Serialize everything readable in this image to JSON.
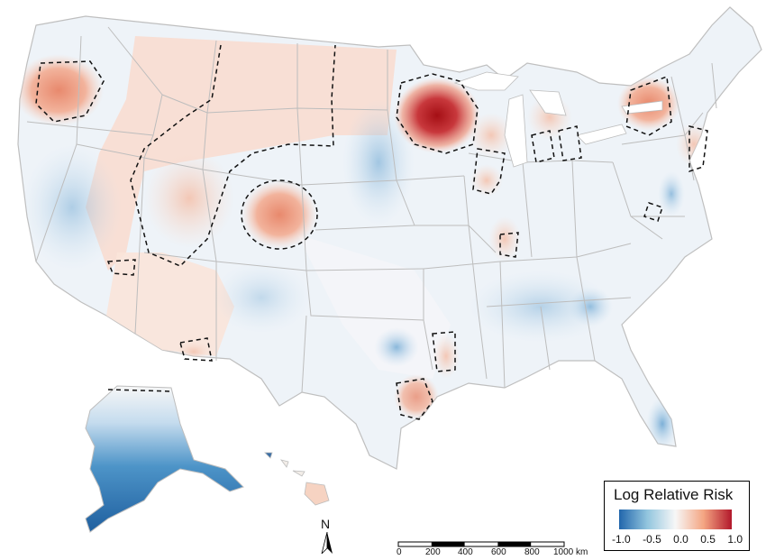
{
  "legend": {
    "title": "Log Relative Risk",
    "ticks": [
      "-1.0",
      "-0.5",
      "0.0",
      "0.5",
      "1.0"
    ],
    "colors": [
      "#2166ac",
      "#92c5de",
      "#f7f7f7",
      "#f4a582",
      "#b2182b"
    ]
  },
  "north": {
    "label": "N"
  },
  "scale": {
    "ticks": [
      "0",
      "200",
      "400",
      "600",
      "800",
      "1000 km"
    ]
  },
  "colors": {
    "state_border": "#b8b8b8",
    "dashed_contour": "#111111",
    "base_fill": "#eef3f8"
  }
}
